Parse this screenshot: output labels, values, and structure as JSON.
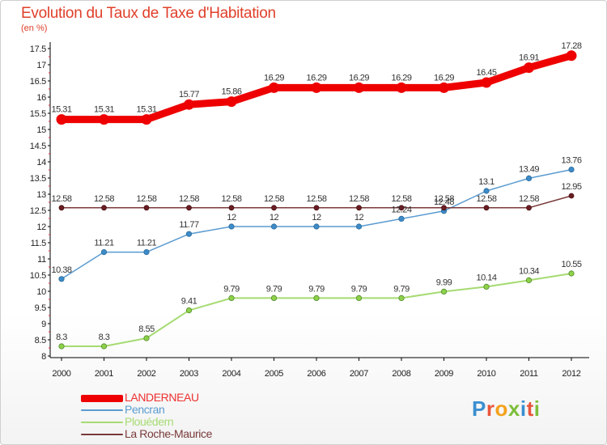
{
  "title": "Evolution du Taux de Taxe d'Habitation",
  "subtitle": "(en %)",
  "brand": [
    "P",
    "r",
    "o",
    "x",
    "i",
    "t",
    "i"
  ],
  "chart_data": {
    "type": "line",
    "title": "Evolution du Taux de Taxe d'Habitation",
    "ylabel": "(en %)",
    "xlabel": "",
    "ylim": [
      8,
      17.5
    ],
    "grid": false,
    "legend_position": "bottom-left",
    "x": [
      "2000",
      "2001",
      "2002",
      "2003",
      "2004",
      "2005",
      "2006",
      "2007",
      "2008",
      "2009",
      "2010",
      "2011",
      "2012"
    ],
    "yticks": [
      "8",
      "8.5",
      "9",
      "9.5",
      "10",
      "10.5",
      "11",
      "11.5",
      "12",
      "12.5",
      "13",
      "13.5",
      "14",
      "14.5",
      "15",
      "15.5",
      "16",
      "16.5",
      "17",
      "17.5"
    ],
    "series": [
      {
        "name": "LANDERNEAU",
        "color": "#ee0000",
        "values": [
          15.31,
          15.31,
          15.31,
          15.77,
          15.86,
          16.29,
          16.29,
          16.29,
          16.29,
          16.29,
          16.45,
          16.91,
          17.28
        ],
        "labels": [
          "15.31",
          "15.31",
          "15.31",
          "15.77",
          "15.86",
          "16.29",
          "16.29",
          "16.29",
          "16.29",
          "16.29",
          "16.45",
          "16.91",
          "17.28"
        ]
      },
      {
        "name": "Pencran",
        "color": "#5b9bd0",
        "values": [
          10.38,
          11.21,
          11.21,
          11.77,
          12,
          12,
          12,
          12,
          12.24,
          12.48,
          13.1,
          13.49,
          13.76
        ],
        "labels": [
          "10.38",
          "11.21",
          "11.21",
          "11.77",
          "12",
          "12",
          "12",
          "12",
          "12.24",
          "12.48",
          "13.1",
          "13.49",
          "13.76"
        ]
      },
      {
        "name": "Plouédern",
        "color": "#a6db72",
        "values": [
          8.3,
          8.3,
          8.55,
          9.41,
          9.79,
          9.79,
          9.79,
          9.79,
          9.79,
          9.99,
          10.14,
          10.34,
          10.55
        ],
        "labels": [
          "8.3",
          "8.3",
          "8.55",
          "9.41",
          "9.79",
          "9.79",
          "9.79",
          "9.79",
          "9.79",
          "9.99",
          "10.14",
          "10.34",
          "10.55"
        ]
      },
      {
        "name": "La Roche-Maurice",
        "color": "#7a3a3a",
        "values": [
          12.58,
          12.58,
          12.58,
          12.58,
          12.58,
          12.58,
          12.58,
          12.58,
          12.58,
          12.58,
          12.58,
          12.58,
          12.95
        ],
        "labels": [
          "12.58",
          "12.58",
          "12.58",
          "12.58",
          "12.58",
          "12.58",
          "12.58",
          "12.58",
          "12.58",
          "12.58",
          "12.58",
          "12.58",
          "12.95"
        ]
      }
    ]
  }
}
